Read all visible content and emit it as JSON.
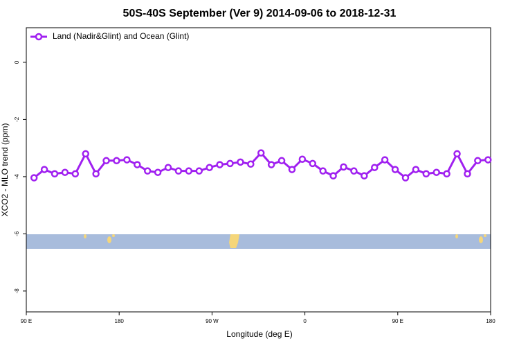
{
  "chart_data": {
    "type": "line",
    "title": "50S-40S September (Ver 9)   2014-09-06 to 2018-12-31",
    "xlabel": "Longitude (deg E)",
    "ylabel": "XCO2 - MLO trend (ppm)",
    "x": [
      97.5,
      107.5,
      117.5,
      127.5,
      137.5,
      147.5,
      157.5,
      167.5,
      177.5,
      187.5,
      197.5,
      207.5,
      217.5,
      227.5,
      237.5,
      247.5,
      257.5,
      267.5,
      277.5,
      287.5,
      297.5,
      307.5,
      317.5,
      327.5,
      337.5,
      347.5,
      357.5,
      367.5,
      377.5,
      387.5,
      397.5,
      407.5,
      417.5,
      427.5,
      437.5,
      447.5,
      457.5,
      467.5,
      477.5,
      487.5,
      497.5,
      507.5,
      517.5,
      527.5,
      537.5
    ],
    "series": [
      {
        "name": "Land (Nadir&Glint) and Ocean (Glint)",
        "color": "#a020f0",
        "values": [
          -4.04,
          -3.75,
          -3.9,
          -3.85,
          -3.9,
          -3.2,
          -3.9,
          -3.44,
          -3.44,
          -3.41,
          -3.58,
          -3.8,
          -3.85,
          -3.68,
          -3.8,
          -3.8,
          -3.8,
          -3.68,
          -3.58,
          -3.54,
          -3.49,
          -3.56,
          -3.17,
          -3.58,
          -3.44,
          -3.75,
          -3.39,
          -3.54,
          -3.8,
          -3.97,
          -3.66,
          -3.8,
          -3.97,
          -3.68,
          -3.41,
          -3.75,
          -4.04,
          -3.75,
          -3.9,
          -3.85,
          -3.9,
          -3.2,
          -3.9,
          -3.44,
          -3.41
        ]
      }
    ],
    "xlim": [
      90,
      540
    ],
    "xticks": [
      {
        "value": 90,
        "label": "90 E"
      },
      180,
      {
        "value": 270,
        "label": "90 W"
      },
      {
        "value": 360,
        "label": "0"
      },
      {
        "value": 450,
        "label": "90 E"
      },
      {
        "value": 540,
        "label": "180"
      }
    ],
    "ylim": [
      -8.73,
      1.21
    ],
    "yticks": [
      0,
      -2,
      -4,
      -6,
      -8
    ],
    "legend": "top-left"
  }
}
